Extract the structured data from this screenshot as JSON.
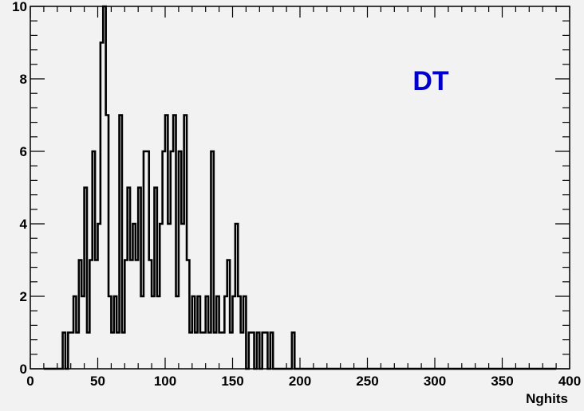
{
  "chart_data": {
    "type": "bar",
    "histogram": true,
    "annotation": "DT",
    "xlabel": "Nghits",
    "ylabel": "",
    "xlim": [
      0,
      400
    ],
    "ylim": [
      0,
      10
    ],
    "bin_width": 2,
    "x_ticks": [
      0,
      50,
      100,
      150,
      200,
      250,
      300,
      350,
      400
    ],
    "y_ticks": [
      0,
      2,
      4,
      6,
      8,
      10
    ],
    "grid": false,
    "colors": {
      "line": "#000000",
      "annotation": "#0000cc",
      "background": "#f2f2f2"
    },
    "bins": [
      {
        "x": 24,
        "y": 1
      },
      {
        "x": 28,
        "y": 1
      },
      {
        "x": 30,
        "y": 1
      },
      {
        "x": 32,
        "y": 2
      },
      {
        "x": 34,
        "y": 1
      },
      {
        "x": 36,
        "y": 3
      },
      {
        "x": 38,
        "y": 2
      },
      {
        "x": 40,
        "y": 5
      },
      {
        "x": 42,
        "y": 1
      },
      {
        "x": 44,
        "y": 3
      },
      {
        "x": 46,
        "y": 6
      },
      {
        "x": 48,
        "y": 3
      },
      {
        "x": 50,
        "y": 4
      },
      {
        "x": 52,
        "y": 9
      },
      {
        "x": 54,
        "y": 10
      },
      {
        "x": 56,
        "y": 7
      },
      {
        "x": 58,
        "y": 2
      },
      {
        "x": 60,
        "y": 1
      },
      {
        "x": 62,
        "y": 2
      },
      {
        "x": 64,
        "y": 1
      },
      {
        "x": 66,
        "y": 7
      },
      {
        "x": 68,
        "y": 1
      },
      {
        "x": 70,
        "y": 3
      },
      {
        "x": 72,
        "y": 5
      },
      {
        "x": 74,
        "y": 3
      },
      {
        "x": 76,
        "y": 4
      },
      {
        "x": 78,
        "y": 3
      },
      {
        "x": 80,
        "y": 5
      },
      {
        "x": 82,
        "y": 2
      },
      {
        "x": 84,
        "y": 6
      },
      {
        "x": 86,
        "y": 6
      },
      {
        "x": 88,
        "y": 3
      },
      {
        "x": 90,
        "y": 2
      },
      {
        "x": 92,
        "y": 5
      },
      {
        "x": 94,
        "y": 2
      },
      {
        "x": 96,
        "y": 4
      },
      {
        "x": 98,
        "y": 6
      },
      {
        "x": 100,
        "y": 7
      },
      {
        "x": 102,
        "y": 4
      },
      {
        "x": 104,
        "y": 6
      },
      {
        "x": 106,
        "y": 7
      },
      {
        "x": 108,
        "y": 2
      },
      {
        "x": 110,
        "y": 6
      },
      {
        "x": 112,
        "y": 4
      },
      {
        "x": 114,
        "y": 7
      },
      {
        "x": 116,
        "y": 3
      },
      {
        "x": 118,
        "y": 1
      },
      {
        "x": 120,
        "y": 2
      },
      {
        "x": 122,
        "y": 1
      },
      {
        "x": 124,
        "y": 2
      },
      {
        "x": 126,
        "y": 1
      },
      {
        "x": 128,
        "y": 1
      },
      {
        "x": 130,
        "y": 2
      },
      {
        "x": 132,
        "y": 1
      },
      {
        "x": 134,
        "y": 6
      },
      {
        "x": 136,
        "y": 1
      },
      {
        "x": 138,
        "y": 2
      },
      {
        "x": 140,
        "y": 1
      },
      {
        "x": 142,
        "y": 1
      },
      {
        "x": 144,
        "y": 2
      },
      {
        "x": 146,
        "y": 3
      },
      {
        "x": 148,
        "y": 1
      },
      {
        "x": 150,
        "y": 2
      },
      {
        "x": 152,
        "y": 4
      },
      {
        "x": 154,
        "y": 2
      },
      {
        "x": 156,
        "y": 1
      },
      {
        "x": 158,
        "y": 2
      },
      {
        "x": 162,
        "y": 1
      },
      {
        "x": 164,
        "y": 1
      },
      {
        "x": 168,
        "y": 1
      },
      {
        "x": 172,
        "y": 1
      },
      {
        "x": 174,
        "y": 1
      },
      {
        "x": 178,
        "y": 1
      },
      {
        "x": 194,
        "y": 1
      }
    ]
  }
}
